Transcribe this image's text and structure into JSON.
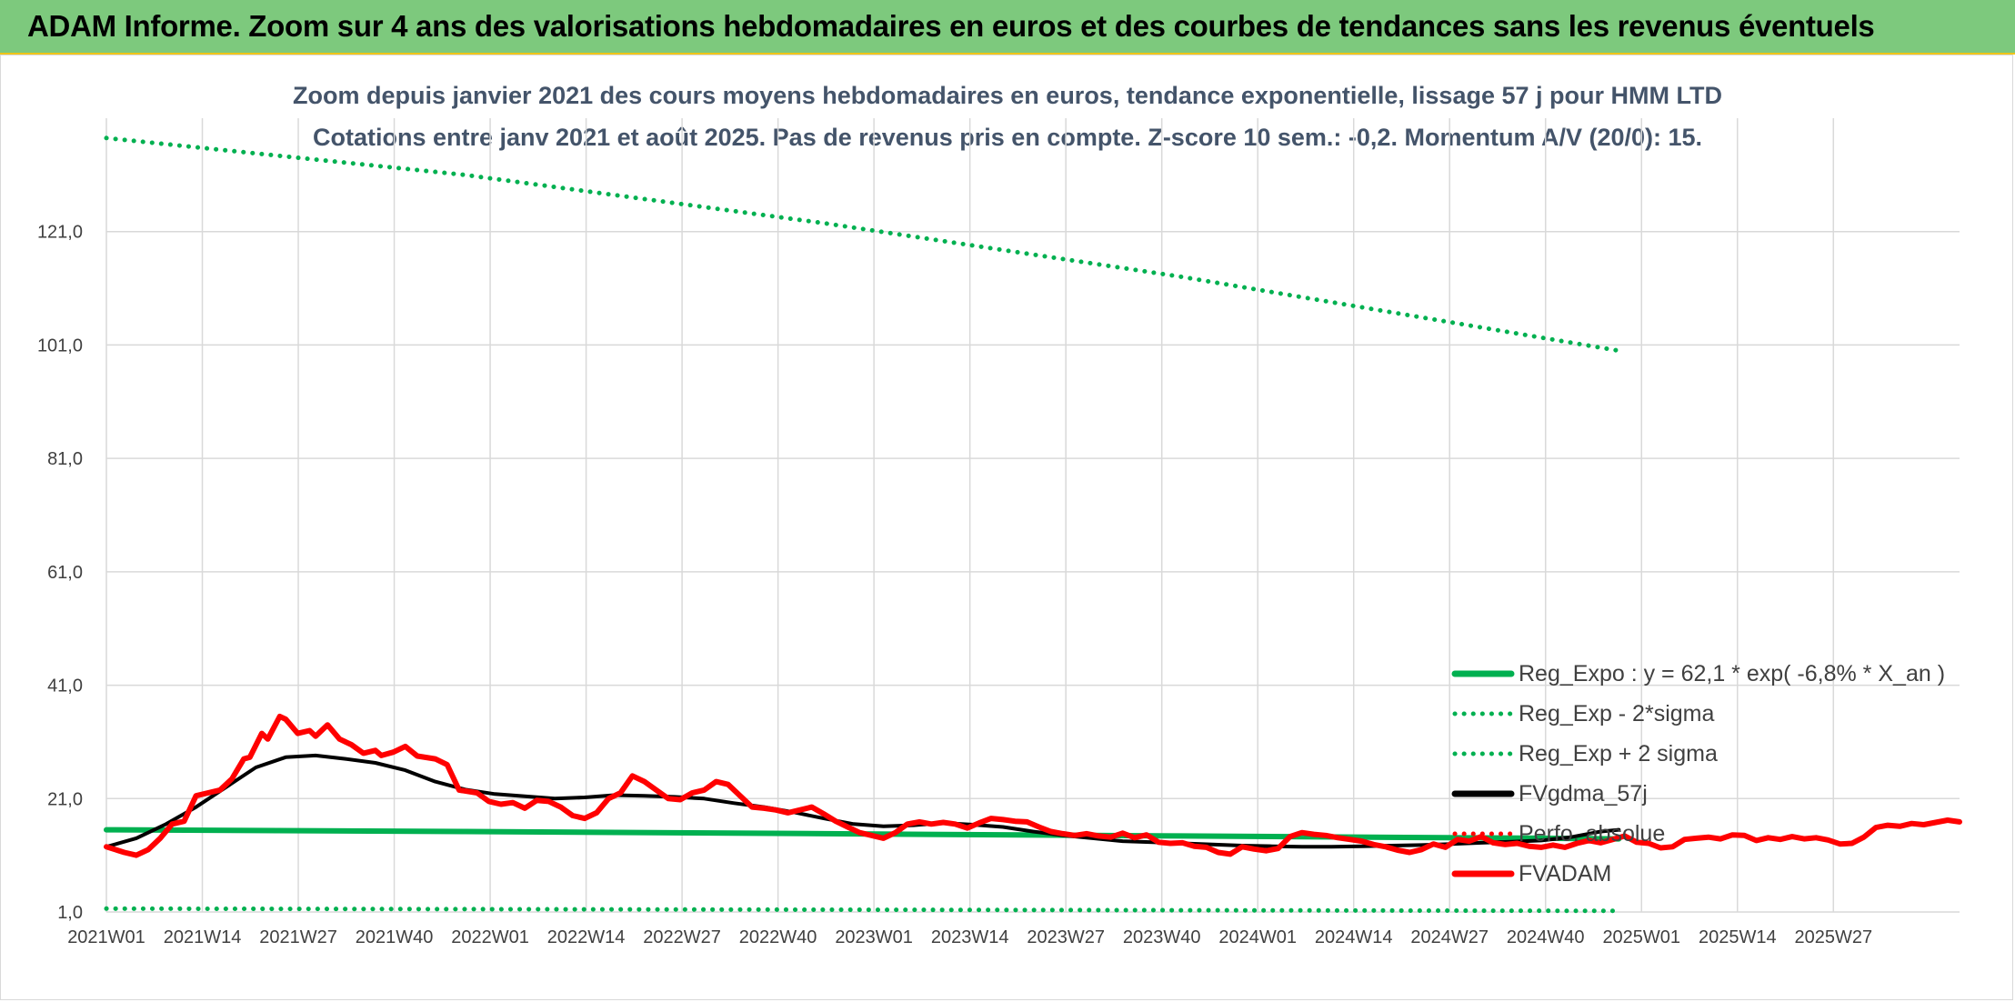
{
  "banner": {
    "title": "ADAM Informe. Zoom sur 4 ans des valorisations hebdomadaires en euros et des courbes de tendances sans les revenus éventuels"
  },
  "chart_data": {
    "type": "line",
    "title": "Zoom depuis janvier 2021 des cours moyens hebdomadaires en euros, tendance exponentielle, lissage 57 j pour HMM LTD",
    "subtitle": "Cotations entre janv 2021 et août 2025. Pas de revenus pris en compte. Z-score 10 sem.: -0,2. Momentum A/V (20/0): 15.",
    "xlabel": "",
    "ylabel": "",
    "ylim": [
      1,
      141
    ],
    "yticks": [
      "1,0",
      "21,0",
      "41,0",
      "61,0",
      "81,0",
      "101,0",
      "121,0"
    ],
    "xticks": [
      "2021W01",
      "2021W14",
      "2021W27",
      "2021W40",
      "2022W01",
      "2022W14",
      "2022W27",
      "2022W40",
      "2023W01",
      "2023W14",
      "2023W27",
      "2023W40",
      "2024W01",
      "2024W14",
      "2024W27",
      "2024W40",
      "2025W01",
      "2025W14",
      "2025W27"
    ],
    "grid": true,
    "legend_position": "bottom-right",
    "series": [
      {
        "name": "Reg_Expo : y = 62,1 * exp( -6,8% *  X_an )",
        "color": "#00b050",
        "style": "solid",
        "width": 6,
        "points": [
          [
            0,
            15.5
          ],
          [
            60,
            15.2
          ],
          [
            120,
            14.8
          ],
          [
            180,
            14.4
          ],
          [
            240,
            14.0
          ],
          [
            253,
            13.9
          ]
        ]
      },
      {
        "name": "Reg_Exp - 2*sigma",
        "color": "#00b050",
        "style": "dotted",
        "width": 5,
        "points": [
          [
            0,
            1.6
          ],
          [
            120,
            1.4
          ],
          [
            253,
            1.2
          ]
        ]
      },
      {
        "name": "Reg_Exp + 2 sigma",
        "color": "#00b050",
        "style": "dotted",
        "width": 5,
        "points": [
          [
            0,
            137.5
          ],
          [
            60,
            131.0
          ],
          [
            120,
            122.5
          ],
          [
            180,
            113.0
          ],
          [
            253,
            100.0
          ]
        ]
      },
      {
        "name": "FVgdma_57j",
        "color": "#000000",
        "style": "solid",
        "width": 4,
        "points": [
          [
            0,
            12.5
          ],
          [
            5,
            14
          ],
          [
            10,
            16.5
          ],
          [
            15,
            19.5
          ],
          [
            20,
            23
          ],
          [
            25,
            26.5
          ],
          [
            30,
            28.3
          ],
          [
            35,
            28.6
          ],
          [
            40,
            28
          ],
          [
            45,
            27.3
          ],
          [
            50,
            26
          ],
          [
            55,
            24
          ],
          [
            60,
            22.6
          ],
          [
            65,
            21.8
          ],
          [
            70,
            21.4
          ],
          [
            75,
            21
          ],
          [
            80,
            21.2
          ],
          [
            85,
            21.6
          ],
          [
            90,
            21.5
          ],
          [
            95,
            21.3
          ],
          [
            100,
            21
          ],
          [
            105,
            20.2
          ],
          [
            110,
            19.5
          ],
          [
            115,
            18.6
          ],
          [
            120,
            17.5
          ],
          [
            125,
            16.5
          ],
          [
            130,
            16.1
          ],
          [
            135,
            16.3
          ],
          [
            140,
            16.7
          ],
          [
            145,
            16.4
          ],
          [
            150,
            16
          ],
          [
            155,
            15.2
          ],
          [
            160,
            14.5
          ],
          [
            165,
            14
          ],
          [
            170,
            13.5
          ],
          [
            175,
            13.3
          ],
          [
            180,
            13.1
          ],
          [
            185,
            12.9
          ],
          [
            190,
            12.7
          ],
          [
            195,
            12.6
          ],
          [
            200,
            12.5
          ],
          [
            205,
            12.5
          ],
          [
            210,
            12.6
          ],
          [
            215,
            12.7
          ],
          [
            220,
            12.8
          ],
          [
            225,
            13
          ],
          [
            230,
            13.2
          ],
          [
            235,
            13.4
          ],
          [
            240,
            13.6
          ],
          [
            245,
            14.2
          ],
          [
            250,
            15.2
          ],
          [
            253,
            15.5
          ]
        ]
      },
      {
        "name": "Perfo. absolue",
        "color": "#ff0000",
        "style": "dotted",
        "width": 4,
        "points": []
      },
      {
        "name": "FVADAM",
        "color": "#ff0000",
        "style": "solid",
        "width": 6,
        "points": [
          [
            0,
            12.5
          ],
          [
            3,
            11.5
          ],
          [
            5,
            11
          ],
          [
            7,
            12
          ],
          [
            9,
            14
          ],
          [
            11,
            16.5
          ],
          [
            13,
            17
          ],
          [
            15,
            21.5
          ],
          [
            17,
            22
          ],
          [
            19,
            22.5
          ],
          [
            21,
            24.5
          ],
          [
            23,
            28
          ],
          [
            24,
            28.3
          ],
          [
            26,
            32.5
          ],
          [
            27,
            31.5
          ],
          [
            29,
            35.5
          ],
          [
            30,
            35
          ],
          [
            32,
            32.5
          ],
          [
            34,
            33
          ],
          [
            35,
            32
          ],
          [
            37,
            34
          ],
          [
            39,
            31.5
          ],
          [
            41,
            30.5
          ],
          [
            43,
            29
          ],
          [
            45,
            29.5
          ],
          [
            46,
            28.6
          ],
          [
            48,
            29.2
          ],
          [
            50,
            30.2
          ],
          [
            52,
            28.5
          ],
          [
            55,
            28
          ],
          [
            57,
            27
          ],
          [
            59,
            22.5
          ],
          [
            62,
            22
          ],
          [
            64,
            20.5
          ],
          [
            66,
            20
          ],
          [
            68,
            20.3
          ],
          [
            70,
            19.3
          ],
          [
            72,
            20.7
          ],
          [
            74,
            20.5
          ],
          [
            76,
            19.5
          ],
          [
            78,
            18
          ],
          [
            80,
            17.5
          ],
          [
            82,
            18.5
          ],
          [
            84,
            21
          ],
          [
            86,
            22
          ],
          [
            88,
            25
          ],
          [
            90,
            24
          ],
          [
            92,
            22.5
          ],
          [
            94,
            21
          ],
          [
            96,
            20.8
          ],
          [
            98,
            22
          ],
          [
            100,
            22.5
          ],
          [
            102,
            24
          ],
          [
            104,
            23.5
          ],
          [
            106,
            21.5
          ],
          [
            108,
            19.5
          ],
          [
            110,
            19.3
          ],
          [
            112,
            19
          ],
          [
            114,
            18.5
          ],
          [
            116,
            19
          ],
          [
            118,
            19.5
          ],
          [
            120,
            18.3
          ],
          [
            122,
            17
          ],
          [
            124,
            16
          ],
          [
            126,
            15
          ],
          [
            128,
            14.5
          ],
          [
            130,
            14
          ],
          [
            132,
            15
          ],
          [
            134,
            16.5
          ],
          [
            136,
            16.9
          ],
          [
            138,
            16.5
          ],
          [
            140,
            16.8
          ],
          [
            142,
            16.5
          ],
          [
            144,
            15.8
          ],
          [
            146,
            16.7
          ],
          [
            148,
            17.5
          ],
          [
            150,
            17.3
          ],
          [
            152,
            17
          ],
          [
            154,
            16.9
          ],
          [
            156,
            16
          ],
          [
            158,
            15.2
          ],
          [
            160,
            14.8
          ],
          [
            162,
            14.5
          ],
          [
            164,
            14.8
          ],
          [
            166,
            14.4
          ],
          [
            168,
            14.2
          ],
          [
            170,
            14.9
          ],
          [
            172,
            14.1
          ],
          [
            174,
            14.6
          ],
          [
            176,
            13.3
          ],
          [
            178,
            13.1
          ],
          [
            180,
            13.2
          ],
          [
            182,
            12.6
          ],
          [
            184,
            12.4
          ],
          [
            186,
            11.5
          ],
          [
            188,
            11.2
          ],
          [
            190,
            12.5
          ],
          [
            192,
            12.1
          ],
          [
            194,
            11.8
          ],
          [
            196,
            12.2
          ],
          [
            198,
            14.3
          ],
          [
            200,
            15
          ],
          [
            202,
            14.7
          ],
          [
            204,
            14.5
          ],
          [
            206,
            14.1
          ],
          [
            208,
            13.8
          ],
          [
            210,
            13.5
          ],
          [
            212,
            12.9
          ],
          [
            214,
            12.5
          ],
          [
            216,
            11.9
          ],
          [
            218,
            11.5
          ],
          [
            220,
            12
          ],
          [
            222,
            13
          ],
          [
            224,
            12.4
          ],
          [
            226,
            13.8
          ],
          [
            228,
            13.5
          ],
          [
            230,
            14.3
          ],
          [
            232,
            13.2
          ],
          [
            234,
            12.9
          ],
          [
            236,
            13.1
          ],
          [
            238,
            12.6
          ],
          [
            240,
            12.4
          ],
          [
            242,
            12.8
          ],
          [
            244,
            12.4
          ],
          [
            246,
            13.1
          ],
          [
            248,
            13.6
          ],
          [
            250,
            13.2
          ],
          [
            252,
            13.8
          ],
          [
            254,
            14.4
          ],
          [
            256,
            13.3
          ],
          [
            258,
            13.1
          ],
          [
            260,
            12.3
          ],
          [
            262,
            12.5
          ],
          [
            264,
            13.8
          ],
          [
            266,
            14
          ],
          [
            268,
            14.2
          ],
          [
            270,
            13.9
          ],
          [
            272,
            14.6
          ],
          [
            274,
            14.5
          ],
          [
            276,
            13.6
          ],
          [
            278,
            14.1
          ],
          [
            280,
            13.8
          ],
          [
            282,
            14.3
          ],
          [
            284,
            13.9
          ],
          [
            286,
            14.1
          ],
          [
            288,
            13.7
          ],
          [
            290,
            13
          ],
          [
            292,
            13.1
          ],
          [
            294,
            14.2
          ],
          [
            296,
            15.9
          ],
          [
            298,
            16.3
          ],
          [
            300,
            16.1
          ],
          [
            302,
            16.6
          ],
          [
            304,
            16.4
          ],
          [
            306,
            16.8
          ],
          [
            308,
            17.2
          ],
          [
            310,
            16.9
          ]
        ]
      }
    ]
  }
}
